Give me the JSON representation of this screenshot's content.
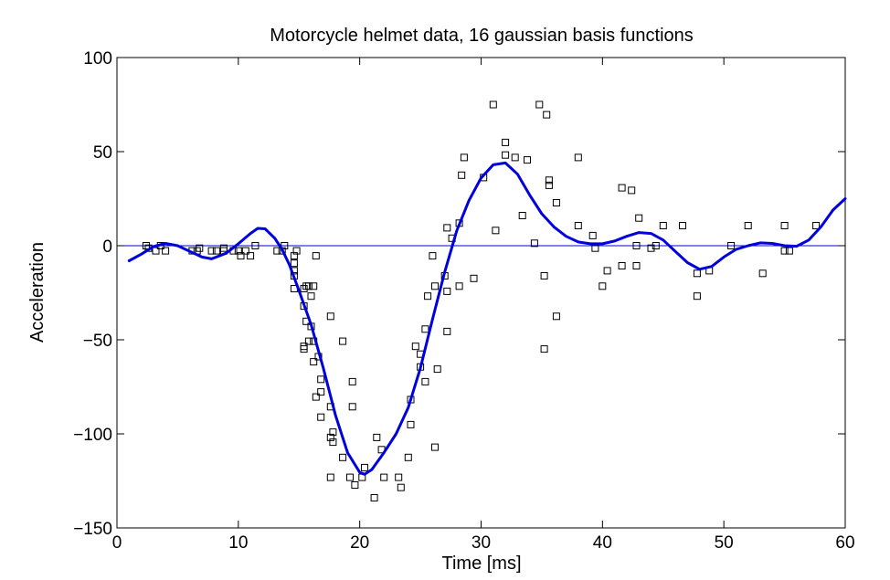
{
  "chart_data": {
    "type": "scatter",
    "title": "Motorcycle helmet data, 16 gaussian basis functions",
    "xlabel": "Time [ms]",
    "ylabel": "Acceleration",
    "xlim": [
      0,
      60
    ],
    "ylim": [
      -150,
      100
    ],
    "xticks": [
      0,
      10,
      20,
      30,
      40,
      50,
      60
    ],
    "yticks": [
      -150,
      -100,
      -50,
      0,
      50,
      100
    ],
    "xtick_labels": [
      "0",
      "10",
      "20",
      "30",
      "40",
      "50",
      "60"
    ],
    "ytick_labels": [
      "−150",
      "−100",
      "−50",
      "0",
      "50",
      "100"
    ],
    "grid": false,
    "colors": {
      "fit": "#0000dd",
      "zero_line": "#0000dd",
      "markers": "#000000",
      "axes": "#000000"
    },
    "series": [
      {
        "kind": "scatter",
        "marker": "square",
        "points": [
          [
            2.4,
            0
          ],
          [
            2.6,
            -1.3
          ],
          [
            3.2,
            -2.7
          ],
          [
            3.6,
            0
          ],
          [
            4.0,
            -2.7
          ],
          [
            6.2,
            -2.7
          ],
          [
            6.6,
            -2.7
          ],
          [
            6.8,
            -1.3
          ],
          [
            7.8,
            -2.7
          ],
          [
            8.2,
            -2.7
          ],
          [
            8.8,
            -1.3
          ],
          [
            8.8,
            -2.7
          ],
          [
            9.6,
            -2.7
          ],
          [
            10.0,
            -2.7
          ],
          [
            10.2,
            -5.4
          ],
          [
            10.6,
            -2.7
          ],
          [
            11.0,
            -5.4
          ],
          [
            11.4,
            0
          ],
          [
            13.2,
            -2.7
          ],
          [
            13.6,
            -2.7
          ],
          [
            13.8,
            0
          ],
          [
            14.6,
            -13.3
          ],
          [
            14.6,
            -5.4
          ],
          [
            14.6,
            -9.3
          ],
          [
            14.6,
            -16.0
          ],
          [
            14.6,
            -22.8
          ],
          [
            14.8,
            -2.7
          ],
          [
            15.4,
            -22.8
          ],
          [
            15.4,
            -32.1
          ],
          [
            15.4,
            -53.5
          ],
          [
            15.4,
            -54.9
          ],
          [
            15.6,
            -40.2
          ],
          [
            15.6,
            -21.5
          ],
          [
            15.8,
            -21.5
          ],
          [
            15.8,
            -50.8
          ],
          [
            16.0,
            -42.9
          ],
          [
            16.0,
            -26.8
          ],
          [
            16.2,
            -21.5
          ],
          [
            16.2,
            -50.8
          ],
          [
            16.2,
            -61.7
          ],
          [
            16.4,
            -5.4
          ],
          [
            16.4,
            -80.4
          ],
          [
            16.6,
            -59.0
          ],
          [
            16.8,
            -71.0
          ],
          [
            16.8,
            -91.1
          ],
          [
            16.8,
            -77.7
          ],
          [
            17.6,
            -37.5
          ],
          [
            17.6,
            -85.6
          ],
          [
            17.6,
            -123.1
          ],
          [
            17.6,
            -101.9
          ],
          [
            17.8,
            -99.1
          ],
          [
            17.8,
            -104.4
          ],
          [
            18.6,
            -112.5
          ],
          [
            18.6,
            -50.8
          ],
          [
            19.2,
            -123.1
          ],
          [
            19.4,
            -85.6
          ],
          [
            19.4,
            -72.3
          ],
          [
            19.6,
            -127.2
          ],
          [
            20.2,
            -123.1
          ],
          [
            20.4,
            -117.9
          ],
          [
            21.2,
            -134.0
          ],
          [
            21.4,
            -101.9
          ],
          [
            21.8,
            -108.4
          ],
          [
            22.0,
            -123.1
          ],
          [
            23.2,
            -123.1
          ],
          [
            23.4,
            -128.5
          ],
          [
            24.0,
            -112.5
          ],
          [
            24.2,
            -95.1
          ],
          [
            24.2,
            -81.8
          ],
          [
            24.6,
            -53.5
          ],
          [
            25.0,
            -64.4
          ],
          [
            25.0,
            -57.6
          ],
          [
            25.4,
            -72.3
          ],
          [
            25.4,
            -44.3
          ],
          [
            25.6,
            -26.8
          ],
          [
            26.0,
            -5.4
          ],
          [
            26.2,
            -107.1
          ],
          [
            26.2,
            -21.5
          ],
          [
            26.4,
            -65.6
          ],
          [
            27.0,
            -16.0
          ],
          [
            27.2,
            -45.6
          ],
          [
            27.2,
            -24.2
          ],
          [
            27.2,
            9.5
          ],
          [
            27.6,
            4.0
          ],
          [
            28.2,
            12.0
          ],
          [
            28.2,
            -21.5
          ],
          [
            28.4,
            37.5
          ],
          [
            28.6,
            46.9
          ],
          [
            29.4,
            -17.4
          ],
          [
            30.2,
            36.2
          ],
          [
            31.0,
            75.0
          ],
          [
            31.2,
            8.1
          ],
          [
            32.0,
            54.9
          ],
          [
            32.0,
            48.2
          ],
          [
            32.8,
            46.9
          ],
          [
            33.4,
            16.0
          ],
          [
            33.8,
            45.6
          ],
          [
            34.4,
            1.3
          ],
          [
            34.8,
            75.0
          ],
          [
            35.2,
            -16.0
          ],
          [
            35.2,
            -54.9
          ],
          [
            35.4,
            69.6
          ],
          [
            35.6,
            34.8
          ],
          [
            35.6,
            32.1
          ],
          [
            36.2,
            -37.5
          ],
          [
            36.2,
            22.8
          ],
          [
            38.0,
            46.9
          ],
          [
            38.0,
            10.7
          ],
          [
            39.2,
            5.4
          ],
          [
            39.4,
            -1.3
          ],
          [
            40.0,
            -21.5
          ],
          [
            40.4,
            -13.3
          ],
          [
            41.6,
            30.8
          ],
          [
            41.6,
            -10.7
          ],
          [
            42.4,
            29.4
          ],
          [
            42.8,
            0
          ],
          [
            42.8,
            -10.7
          ],
          [
            43.0,
            14.7
          ],
          [
            44.0,
            -1.3
          ],
          [
            44.4,
            0
          ],
          [
            45.0,
            10.7
          ],
          [
            46.6,
            10.7
          ],
          [
            47.8,
            -26.8
          ],
          [
            47.8,
            -14.7
          ],
          [
            48.8,
            -13.3
          ],
          [
            50.6,
            0
          ],
          [
            52.0,
            10.7
          ],
          [
            53.2,
            -14.7
          ],
          [
            55.0,
            -2.7
          ],
          [
            55.0,
            10.7
          ],
          [
            55.4,
            -2.7
          ],
          [
            57.6,
            10.7
          ]
        ]
      },
      {
        "kind": "line",
        "points": [
          [
            1,
            -8
          ],
          [
            2,
            -4.5
          ],
          [
            3,
            -0.5
          ],
          [
            4,
            1.2
          ],
          [
            5,
            0
          ],
          [
            6,
            -3
          ],
          [
            7,
            -6
          ],
          [
            7.8,
            -7
          ],
          [
            9,
            -4
          ],
          [
            10,
            1
          ],
          [
            11,
            6.5
          ],
          [
            11.6,
            9.2
          ],
          [
            12.2,
            9
          ],
          [
            13,
            4
          ],
          [
            13.6,
            -2
          ],
          [
            14.2,
            -10
          ],
          [
            15,
            -24
          ],
          [
            16,
            -42
          ],
          [
            17,
            -65
          ],
          [
            18,
            -90
          ],
          [
            19,
            -110
          ],
          [
            20,
            -120.5
          ],
          [
            20.4,
            -121.5
          ],
          [
            21,
            -119
          ],
          [
            22,
            -110
          ],
          [
            23,
            -100
          ],
          [
            24,
            -86
          ],
          [
            25,
            -65
          ],
          [
            26,
            -39
          ],
          [
            27,
            -14
          ],
          [
            28,
            8
          ],
          [
            29,
            24
          ],
          [
            30,
            36
          ],
          [
            31,
            43
          ],
          [
            32,
            44
          ],
          [
            33,
            38
          ],
          [
            34,
            27
          ],
          [
            35,
            17
          ],
          [
            36,
            10
          ],
          [
            37,
            5
          ],
          [
            38,
            2
          ],
          [
            39,
            1
          ],
          [
            40,
            1
          ],
          [
            41,
            2.5
          ],
          [
            42,
            5
          ],
          [
            43,
            7
          ],
          [
            44,
            6.5
          ],
          [
            45,
            3
          ],
          [
            46,
            -3
          ],
          [
            47,
            -9
          ],
          [
            48,
            -12.5
          ],
          [
            49,
            -11
          ],
          [
            50,
            -6
          ],
          [
            51,
            -2
          ],
          [
            52,
            0
          ],
          [
            53,
            1.5
          ],
          [
            54,
            1.2
          ],
          [
            55,
            0
          ],
          [
            56,
            -0.3
          ],
          [
            57,
            3
          ],
          [
            58,
            10
          ],
          [
            59,
            19
          ],
          [
            60,
            25
          ]
        ]
      }
    ]
  }
}
